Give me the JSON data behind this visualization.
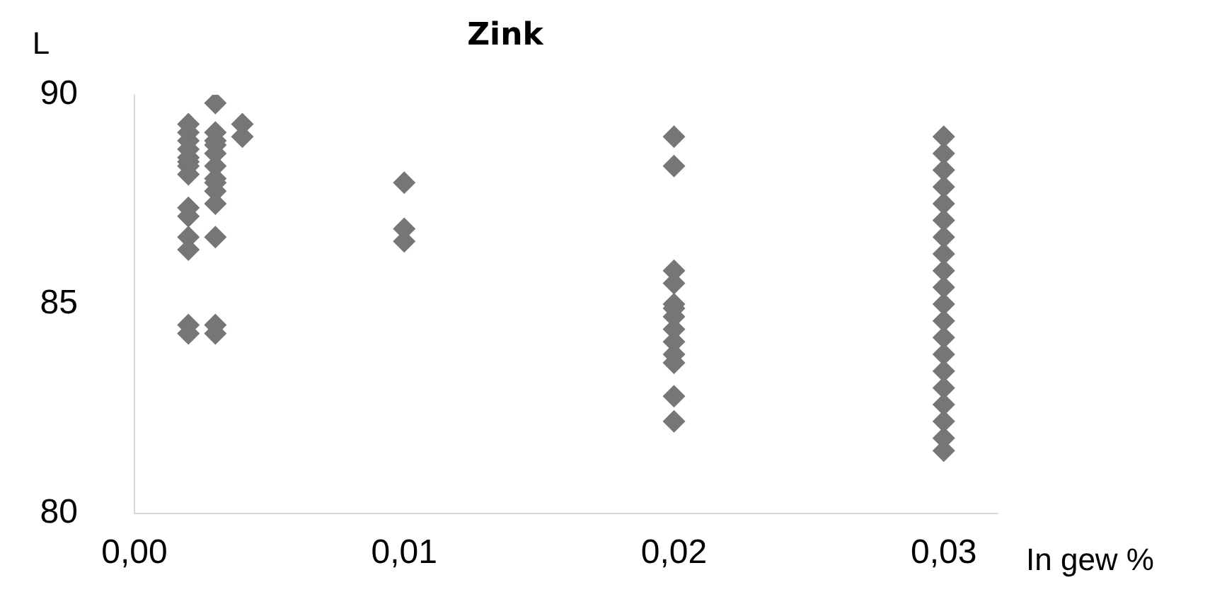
{
  "chart_data": {
    "type": "scatter",
    "title": "Zink",
    "xlabel": "In gew %",
    "ylabel": "L",
    "x": [
      0.002,
      0.002,
      0.002,
      0.002,
      0.002,
      0.002,
      0.002,
      0.002,
      0.002,
      0.002,
      0.002,
      0.002,
      0.002,
      0.002,
      0.003,
      0.003,
      0.003,
      0.003,
      0.003,
      0.003,
      0.003,
      0.003,
      0.003,
      0.003,
      0.003,
      0.003,
      0.003,
      0.004,
      0.004,
      0.01,
      0.01,
      0.01,
      0.02,
      0.02,
      0.02,
      0.02,
      0.02,
      0.02,
      0.02,
      0.02,
      0.02,
      0.02,
      0.02,
      0.02,
      0.02,
      0.03,
      0.03,
      0.03,
      0.03,
      0.03,
      0.03,
      0.03,
      0.03,
      0.03,
      0.03,
      0.03,
      0.03,
      0.03,
      0.03,
      0.03,
      0.03,
      0.03,
      0.03,
      0.03,
      0.03
    ],
    "values": [
      89.3,
      89.1,
      88.9,
      88.7,
      88.5,
      88.3,
      88.1,
      87.3,
      87.1,
      86.6,
      86.3,
      84.5,
      84.3,
      88.4,
      89.8,
      89.1,
      88.9,
      88.6,
      88.3,
      88.0,
      87.7,
      87.4,
      86.6,
      84.5,
      84.3,
      88.8,
      87.9,
      89.3,
      89.0,
      87.9,
      86.8,
      86.5,
      89.0,
      88.3,
      85.8,
      85.5,
      85.0,
      84.7,
      84.4,
      84.1,
      83.8,
      83.6,
      82.8,
      82.2,
      84.9,
      89.0,
      88.6,
      88.2,
      87.8,
      87.4,
      87.0,
      86.6,
      86.2,
      85.8,
      85.4,
      85.0,
      84.6,
      84.2,
      83.8,
      83.4,
      83.0,
      82.6,
      82.2,
      81.8,
      81.5
    ],
    "color": "#767676",
    "marker": "diamond",
    "xlim": [
      0,
      0.032
    ],
    "xticks": [
      {
        "value": 0,
        "label": "0,00"
      },
      {
        "value": 0.01,
        "label": "0,01"
      },
      {
        "value": 0.02,
        "label": "0,02"
      },
      {
        "value": 0.03,
        "label": "0,03"
      }
    ],
    "ylim": [
      80,
      90
    ],
    "yticks": [
      80,
      85,
      90
    ],
    "grid": false,
    "legend": false
  }
}
